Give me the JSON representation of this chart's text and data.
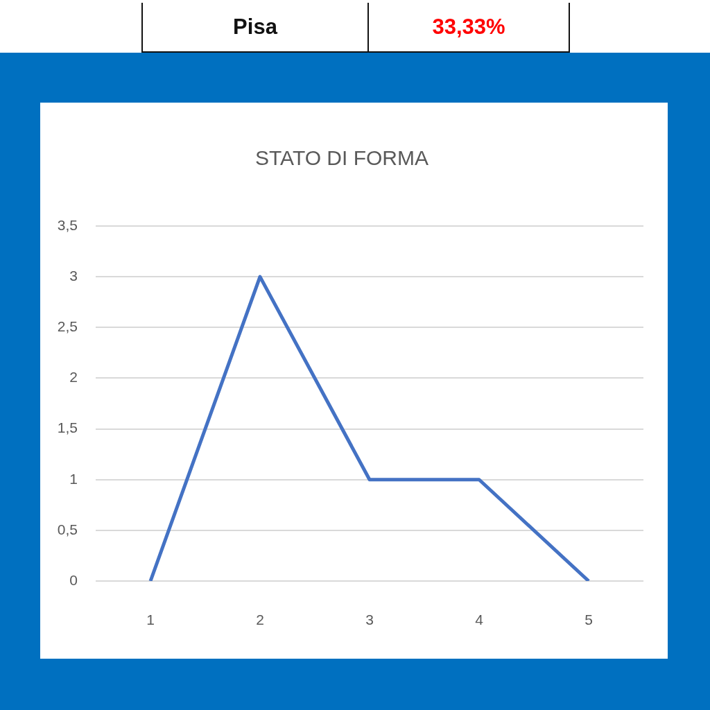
{
  "chart_data": {
    "type": "line",
    "title": "STATO DI FORMA",
    "categories": [
      "1",
      "2",
      "3",
      "4",
      "5"
    ],
    "values": [
      0,
      3,
      1,
      1,
      0
    ],
    "color": "#4472c4",
    "ylim": [
      0,
      3.5
    ],
    "yticks": [
      0,
      {
        "value": 0.5,
        "label": "0,5"
      },
      1,
      {
        "value": 1.5,
        "label": "1,5"
      },
      2,
      {
        "value": 2.5,
        "label": "2,5"
      },
      3,
      {
        "value": 3.5,
        "label": "3,5"
      }
    ],
    "grid": "y",
    "marker": "none",
    "line_style": "solid",
    "annotations": [
      "Pisa",
      "33,33%"
    ]
  }
}
